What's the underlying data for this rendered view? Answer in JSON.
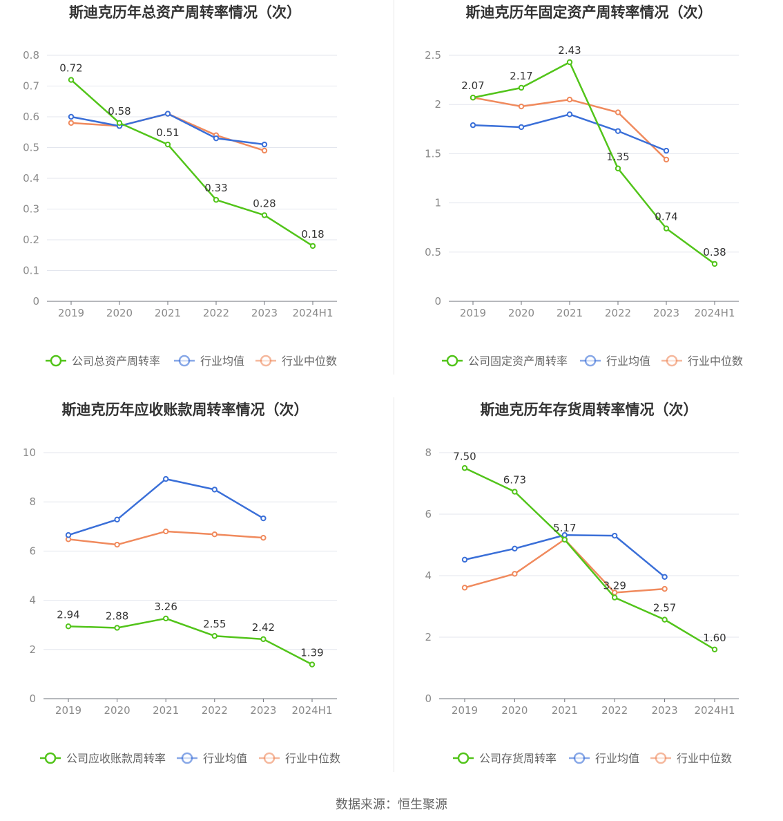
{
  "source": "数据来源：恒生聚源",
  "colors": {
    "company": "#52c41a",
    "avg": "#3a6fd8",
    "median": "#f08a5d"
  },
  "chart_data": [
    {
      "type": "line",
      "title": "斯迪克历年总资产周转率情况（次）",
      "categories": [
        "2019",
        "2020",
        "2021",
        "2022",
        "2023",
        "2024H1"
      ],
      "ylim": [
        0,
        0.8
      ],
      "yticks": [
        0,
        0.1,
        0.2,
        0.3,
        0.4,
        0.5,
        0.6,
        0.7,
        0.8
      ],
      "ytick_labels": [
        "0",
        "0.1",
        "0.2",
        "0.3",
        "0.4",
        "0.5",
        "0.6",
        "0.7",
        "0.8"
      ],
      "legend_position": "bottom",
      "series": [
        {
          "name": "公司总资产周转率",
          "values": [
            0.72,
            0.58,
            0.51,
            0.33,
            0.28,
            0.18
          ],
          "labels": [
            "0.72",
            "0.58",
            "0.51",
            "0.33",
            "0.28",
            "0.18"
          ]
        },
        {
          "name": "行业均值",
          "values": [
            0.6,
            0.57,
            0.61,
            0.53,
            0.51,
            null
          ]
        },
        {
          "name": "行业中位数",
          "values": [
            0.58,
            0.57,
            0.61,
            0.54,
            0.49,
            null
          ]
        }
      ]
    },
    {
      "type": "line",
      "title": "斯迪克历年固定资产周转率情况（次）",
      "categories": [
        "2019",
        "2020",
        "2021",
        "2022",
        "2023",
        "2024H1"
      ],
      "ylim": [
        0,
        2.5
      ],
      "yticks": [
        0,
        0.5,
        1,
        1.5,
        2,
        2.5
      ],
      "ytick_labels": [
        "0",
        "0.5",
        "1",
        "1.5",
        "2",
        "2.5"
      ],
      "legend_position": "bottom",
      "series": [
        {
          "name": "公司固定资产周转率",
          "values": [
            2.07,
            2.17,
            2.43,
            1.35,
            0.74,
            0.38
          ],
          "labels": [
            "2.07",
            "2.17",
            "2.43",
            "1.35",
            "0.74",
            "0.38"
          ]
        },
        {
          "name": "行业均值",
          "values": [
            1.79,
            1.77,
            1.9,
            1.73,
            1.53,
            null
          ]
        },
        {
          "name": "行业中位数",
          "values": [
            2.07,
            1.98,
            2.05,
            1.92,
            1.44,
            null
          ]
        }
      ]
    },
    {
      "type": "line",
      "title": "斯迪克历年应收账款周转率情况（次）",
      "categories": [
        "2019",
        "2020",
        "2021",
        "2022",
        "2023",
        "2024H1"
      ],
      "ylim": [
        0,
        10
      ],
      "yticks": [
        0,
        2,
        4,
        6,
        8,
        10
      ],
      "ytick_labels": [
        "0",
        "2",
        "4",
        "6",
        "8",
        "10"
      ],
      "legend_position": "bottom",
      "series": [
        {
          "name": "公司应收账款周转率",
          "values": [
            2.94,
            2.88,
            3.26,
            2.55,
            2.42,
            1.39
          ],
          "labels": [
            "2.94",
            "2.88",
            "3.26",
            "2.55",
            "2.42",
            "1.39"
          ]
        },
        {
          "name": "行业均值",
          "values": [
            6.65,
            7.28,
            8.93,
            8.5,
            7.33,
            null
          ]
        },
        {
          "name": "行业中位数",
          "values": [
            6.48,
            6.26,
            6.8,
            6.68,
            6.54,
            null
          ]
        }
      ]
    },
    {
      "type": "line",
      "title": "斯迪克历年存货周转率情况（次）",
      "categories": [
        "2019",
        "2020",
        "2021",
        "2022",
        "2023",
        "2024H1"
      ],
      "ylim": [
        0,
        8
      ],
      "yticks": [
        0,
        2,
        4,
        6,
        8
      ],
      "ytick_labels": [
        "0",
        "2",
        "4",
        "6",
        "8"
      ],
      "legend_position": "bottom",
      "series": [
        {
          "name": "公司存货周转率",
          "values": [
            7.5,
            6.73,
            5.17,
            3.29,
            2.57,
            1.6
          ],
          "labels": [
            "7.50",
            "6.73",
            "5.17",
            "3.29",
            "2.57",
            "1.60"
          ]
        },
        {
          "name": "行业均值",
          "values": [
            4.52,
            4.88,
            5.32,
            5.3,
            3.96,
            null
          ]
        },
        {
          "name": "行业中位数",
          "values": [
            3.61,
            4.06,
            5.18,
            3.45,
            3.57,
            null
          ]
        }
      ]
    }
  ]
}
